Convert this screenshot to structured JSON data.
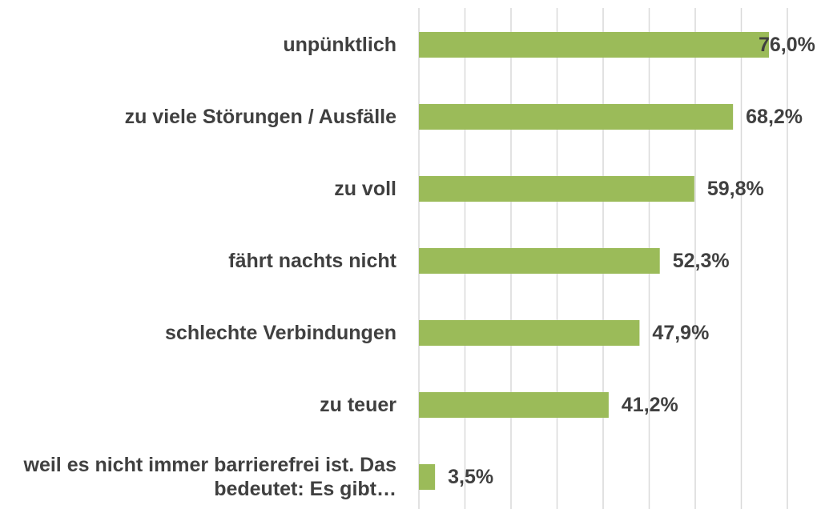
{
  "chart_data": {
    "type": "hbar",
    "categories": [
      "unpünktlich",
      "zu viele Störungen / Ausfälle",
      "zu voll",
      "fährt nachts nicht",
      "schlechte Verbindungen",
      "zu teuer",
      "weil es nicht immer barrierefrei ist. Das bedeutet: Es gibt…"
    ],
    "values": [
      76.0,
      68.2,
      59.8,
      52.3,
      47.9,
      41.2,
      3.5
    ],
    "value_labels": [
      "76,0%",
      "68,2%",
      "59,8%",
      "52,3%",
      "47,9%",
      "41,2%",
      "3,5%"
    ],
    "color": "#9bbb59",
    "xlim": [
      0,
      80
    ],
    "xticks": [
      0,
      10,
      20,
      30,
      40,
      50,
      60,
      70,
      80
    ],
    "grid": true
  }
}
